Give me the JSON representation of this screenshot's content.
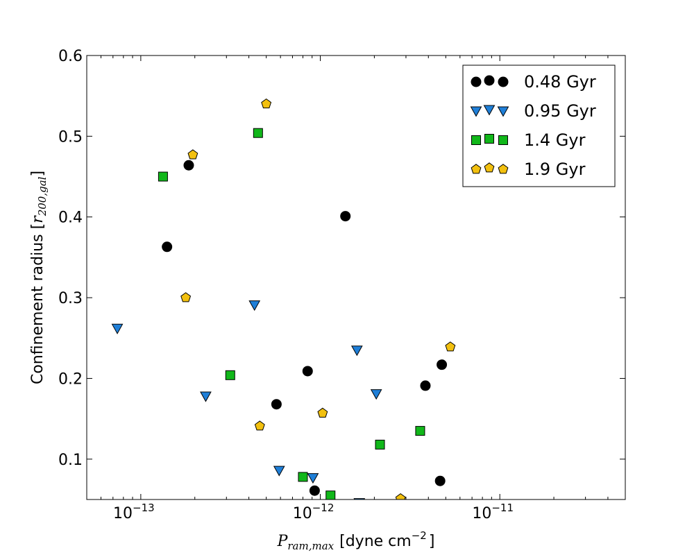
{
  "chart_data": {
    "type": "scatter",
    "title": "",
    "xscale": "log",
    "xlim": [
      5e-14,
      5e-11
    ],
    "ylim": [
      0.05,
      0.6
    ],
    "xlabel": {
      "symbol": "P",
      "subscript": "ram,max",
      "unit_prefix": "[dyne cm",
      "unit_exponent": "−2",
      "unit_suffix": "]"
    },
    "ylabel": {
      "prefix": "Confinement radius [",
      "symbol": "r",
      "subscript": "200,gal",
      "suffix": "]"
    },
    "xticks": [
      {
        "value": 1e-13,
        "base": "10",
        "exp": "−13"
      },
      {
        "value": 1e-12,
        "base": "10",
        "exp": "−12"
      },
      {
        "value": 1e-11,
        "base": "10",
        "exp": "−11"
      }
    ],
    "yticks": [
      {
        "value": 0.1,
        "label": "0.1"
      },
      {
        "value": 0.2,
        "label": "0.2"
      },
      {
        "value": 0.3,
        "label": "0.3"
      },
      {
        "value": 0.4,
        "label": "0.4"
      },
      {
        "value": 0.5,
        "label": "0.5"
      },
      {
        "value": 0.6,
        "label": "0.6"
      }
    ],
    "legend_position": "top-right",
    "series": [
      {
        "name": "0.48 Gyr",
        "marker": "circle",
        "color": "#000000",
        "points": [
          {
            "x": 1.85e-13,
            "y": 0.464
          },
          {
            "x": 1.4e-13,
            "y": 0.363
          },
          {
            "x": 1.38e-12,
            "y": 0.401
          },
          {
            "x": 8.5e-13,
            "y": 0.209
          },
          {
            "x": 5.7e-13,
            "y": 0.168
          },
          {
            "x": 9.3e-13,
            "y": 0.061
          },
          {
            "x": 3.85e-12,
            "y": 0.191
          },
          {
            "x": 4.75e-12,
            "y": 0.217
          },
          {
            "x": 4.65e-12,
            "y": 0.073
          }
        ]
      },
      {
        "name": "0.95 Gyr",
        "marker": "triangle-down",
        "color": "#1f7fd8",
        "points": [
          {
            "x": 7.4e-14,
            "y": 0.262
          },
          {
            "x": 4.3e-13,
            "y": 0.291
          },
          {
            "x": 2.3e-13,
            "y": 0.178
          },
          {
            "x": 5.9e-13,
            "y": 0.086
          },
          {
            "x": 9.1e-13,
            "y": 0.077
          },
          {
            "x": 1.6e-12,
            "y": 0.235
          },
          {
            "x": 2.05e-12,
            "y": 0.181
          },
          {
            "x": 1.65e-12,
            "y": 0.046
          }
        ]
      },
      {
        "name": "1.4 Gyr",
        "marker": "square",
        "color": "#11b71a",
        "points": [
          {
            "x": 1.33e-13,
            "y": 0.45
          },
          {
            "x": 4.5e-13,
            "y": 0.504
          },
          {
            "x": 3.15e-13,
            "y": 0.204
          },
          {
            "x": 8e-13,
            "y": 0.078
          },
          {
            "x": 1.14e-12,
            "y": 0.055
          },
          {
            "x": 2.15e-12,
            "y": 0.118
          },
          {
            "x": 3.6e-12,
            "y": 0.135
          }
        ]
      },
      {
        "name": "1.9 Gyr",
        "marker": "pentagon",
        "color": "#f2c00f",
        "points": [
          {
            "x": 1.95e-13,
            "y": 0.477
          },
          {
            "x": 5e-13,
            "y": 0.54
          },
          {
            "x": 1.78e-13,
            "y": 0.3
          },
          {
            "x": 4.6e-13,
            "y": 0.141
          },
          {
            "x": 1.03e-12,
            "y": 0.157
          },
          {
            "x": 5.3e-12,
            "y": 0.239
          },
          {
            "x": 2.8e-12,
            "y": 0.051
          }
        ]
      }
    ]
  }
}
